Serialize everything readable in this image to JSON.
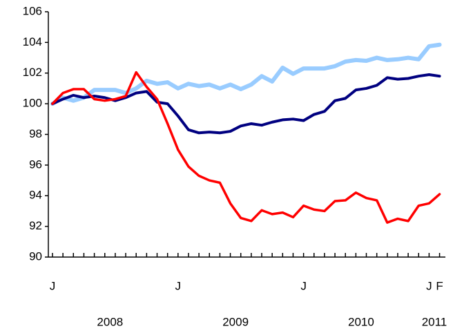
{
  "chart_data": {
    "type": "line",
    "categories": [
      "J",
      null,
      null,
      null,
      null,
      null,
      null,
      null,
      null,
      null,
      null,
      null,
      "J",
      null,
      null,
      null,
      null,
      null,
      null,
      null,
      null,
      null,
      null,
      null,
      "J",
      null,
      null,
      null,
      null,
      null,
      null,
      null,
      null,
      null,
      null,
      null,
      "J",
      "F"
    ],
    "year_labels": [
      "2008",
      "2009",
      "2010",
      "2011"
    ],
    "series": [
      {
        "color": "#99ccff",
        "width": 6,
        "values": [
          100,
          100.4,
          100.2,
          100.4,
          100.9,
          100.9,
          100.9,
          100.7,
          101.0,
          101.5,
          101.3,
          101.4,
          101.0,
          101.3,
          101.15,
          101.25,
          101.0,
          101.25,
          100.95,
          101.25,
          101.8,
          101.45,
          102.35,
          101.95,
          102.3,
          102.3,
          102.3,
          102.45,
          102.75,
          102.85,
          102.8,
          103.0,
          102.85,
          102.9,
          103.0,
          102.9,
          103.75,
          103.85
        ]
      },
      {
        "color": "#000080",
        "width": 4,
        "values": [
          100,
          100.3,
          100.55,
          100.4,
          100.5,
          100.4,
          100.2,
          100.4,
          100.7,
          100.8,
          100.1,
          100.0,
          99.2,
          98.3,
          98.1,
          98.15,
          98.1,
          98.2,
          98.55,
          98.7,
          98.6,
          98.8,
          98.95,
          99.0,
          98.9,
          99.3,
          99.5,
          100.2,
          100.35,
          100.9,
          101.0,
          101.2,
          101.7,
          101.6,
          101.65,
          101.8,
          101.9,
          101.8
        ]
      },
      {
        "color": "#ff0000",
        "width": 3.5,
        "values": [
          100,
          100.7,
          100.95,
          100.95,
          100.3,
          100.2,
          100.3,
          100.5,
          102.05,
          101.1,
          100.3,
          98.7,
          97.0,
          95.9,
          95.3,
          95.0,
          94.85,
          93.5,
          92.55,
          92.35,
          93.05,
          92.8,
          92.9,
          92.6,
          93.35,
          93.1,
          93.0,
          93.65,
          93.7,
          94.2,
          93.85,
          93.7,
          92.25,
          92.5,
          92.35,
          93.35,
          93.5,
          94.1
        ]
      }
    ],
    "ylim": [
      90,
      106
    ],
    "yticks": [
      90,
      92,
      94,
      96,
      98,
      100,
      102,
      104,
      106
    ],
    "grid": false
  }
}
